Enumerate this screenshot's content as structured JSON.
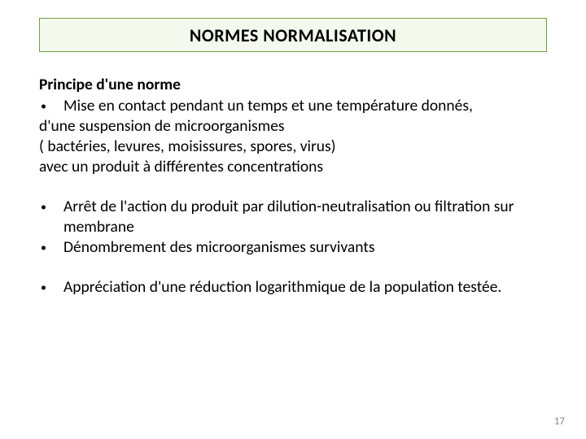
{
  "title": "NORMES  NORMALISATION",
  "title_box": {
    "border_color": "#6fa03a",
    "background_color": "#f4f9ed"
  },
  "heading1": "Principe d'une norme",
  "bullet1": "Mise en contact pendant un temps et une température donnés,",
  "line1": "d'une suspension de microorganismes",
  "line2": "( bactéries, levures, moisissures, spores, virus)",
  "line3": "avec un produit à différentes concentrations",
  "bullet2": "Arrêt de l'action du produit  par dilution-neutralisation ou filtration sur membrane",
  "bullet3": "Dénombrement des microorganismes survivants",
  "bullet4": "Appréciation d'une réduction logarithmique de la population testée.",
  "page_number": "17",
  "colors": {
    "text": "#000000",
    "page_number": "#8b8b8b",
    "background": "#ffffff"
  },
  "fontsize": {
    "title": 22,
    "body": 19.5,
    "page_number": 13
  }
}
